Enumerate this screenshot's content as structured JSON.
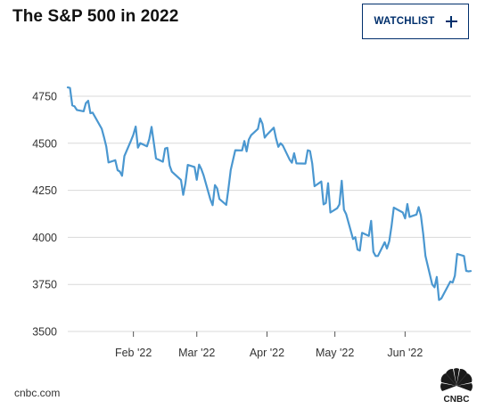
{
  "header": {
    "title": "The S&P 500 in 2022",
    "watchlist_label": "WATCHLIST"
  },
  "footer": {
    "source": "cnbc.com",
    "logo_text": "CNBC"
  },
  "colors": {
    "line": "#4a97d0",
    "grid": "#d9d9d9",
    "button_border": "#002f6c"
  },
  "chart_data": {
    "type": "line",
    "title": "The S&P 500 in 2022",
    "xlabel": "",
    "ylabel": "",
    "ylim": [
      3500,
      4750
    ],
    "yticks": [
      3500,
      3750,
      4000,
      4250,
      4500,
      4750
    ],
    "xlim": [
      "2022-01-03",
      "2022-06-30"
    ],
    "xticks": [
      {
        "date": "2022-02-01",
        "label": "Feb '22"
      },
      {
        "date": "2022-03-01",
        "label": "Mar '22"
      },
      {
        "date": "2022-04-01",
        "label": "Apr '22"
      },
      {
        "date": "2022-05-01",
        "label": "May '22"
      },
      {
        "date": "2022-06-01",
        "label": "Jun '22"
      }
    ],
    "grid": true,
    "series": [
      {
        "x": [
          "2022-01-03",
          "2022-01-04",
          "2022-01-05",
          "2022-01-06",
          "2022-01-07",
          "2022-01-10",
          "2022-01-11",
          "2022-01-12",
          "2022-01-13",
          "2022-01-14",
          "2022-01-18",
          "2022-01-19",
          "2022-01-20",
          "2022-01-21",
          "2022-01-24",
          "2022-01-25",
          "2022-01-26",
          "2022-01-27",
          "2022-01-28",
          "2022-01-31",
          "2022-02-01",
          "2022-02-02",
          "2022-02-03",
          "2022-02-04",
          "2022-02-07",
          "2022-02-08",
          "2022-02-09",
          "2022-02-10",
          "2022-02-11",
          "2022-02-14",
          "2022-02-15",
          "2022-02-16",
          "2022-02-17",
          "2022-02-18",
          "2022-02-22",
          "2022-02-23",
          "2022-02-24",
          "2022-02-25",
          "2022-02-28",
          "2022-03-01",
          "2022-03-02",
          "2022-03-03",
          "2022-03-04",
          "2022-03-07",
          "2022-03-08",
          "2022-03-09",
          "2022-03-10",
          "2022-03-11",
          "2022-03-14",
          "2022-03-15",
          "2022-03-16",
          "2022-03-17",
          "2022-03-18",
          "2022-03-21",
          "2022-03-22",
          "2022-03-23",
          "2022-03-24",
          "2022-03-25",
          "2022-03-28",
          "2022-03-29",
          "2022-03-30",
          "2022-03-31",
          "2022-04-01",
          "2022-04-04",
          "2022-04-05",
          "2022-04-06",
          "2022-04-07",
          "2022-04-08",
          "2022-04-11",
          "2022-04-12",
          "2022-04-13",
          "2022-04-14",
          "2022-04-18",
          "2022-04-19",
          "2022-04-20",
          "2022-04-21",
          "2022-04-22",
          "2022-04-25",
          "2022-04-26",
          "2022-04-27",
          "2022-04-28",
          "2022-04-29",
          "2022-05-02",
          "2022-05-03",
          "2022-05-04",
          "2022-05-05",
          "2022-05-06",
          "2022-05-09",
          "2022-05-10",
          "2022-05-11",
          "2022-05-12",
          "2022-05-13",
          "2022-05-16",
          "2022-05-17",
          "2022-05-18",
          "2022-05-19",
          "2022-05-20",
          "2022-05-23",
          "2022-05-24",
          "2022-05-25",
          "2022-05-26",
          "2022-05-27",
          "2022-05-31",
          "2022-06-01",
          "2022-06-02",
          "2022-06-03",
          "2022-06-06",
          "2022-06-07",
          "2022-06-08",
          "2022-06-09",
          "2022-06-10",
          "2022-06-13",
          "2022-06-14",
          "2022-06-15",
          "2022-06-16",
          "2022-06-17",
          "2022-06-21",
          "2022-06-22",
          "2022-06-23",
          "2022-06-24",
          "2022-06-27",
          "2022-06-28",
          "2022-06-29",
          "2022-06-30"
        ],
        "values": [
          4797,
          4794,
          4701,
          4696,
          4677,
          4670,
          4713,
          4726,
          4660,
          4663,
          4577,
          4533,
          4483,
          4398,
          4410,
          4357,
          4350,
          4327,
          4432,
          4516,
          4546,
          4589,
          4477,
          4501,
          4484,
          4522,
          4587,
          4504,
          4419,
          4402,
          4472,
          4476,
          4381,
          4349,
          4305,
          4226,
          4289,
          4385,
          4374,
          4306,
          4387,
          4363,
          4329,
          4201,
          4171,
          4278,
          4260,
          4204,
          4173,
          4262,
          4358,
          4412,
          4463,
          4462,
          4512,
          4457,
          4520,
          4543,
          4576,
          4632,
          4603,
          4530,
          4546,
          4583,
          4526,
          4481,
          4500,
          4488,
          4413,
          4397,
          4447,
          4393,
          4392,
          4463,
          4459,
          4393,
          4272,
          4297,
          4175,
          4183,
          4288,
          4132,
          4155,
          4175,
          4301,
          4147,
          4123,
          3991,
          4001,
          3935,
          3930,
          4024,
          4008,
          4088,
          3923,
          3901,
          3901,
          3974,
          3941,
          3979,
          4058,
          4158,
          4132,
          4101,
          4177,
          4109,
          4121,
          4161,
          4116,
          4018,
          3901,
          3750,
          3735,
          3790,
          3667,
          3675,
          3765,
          3760,
          3796,
          3912,
          3901,
          3822,
          3819,
          3821
        ]
      }
    ]
  }
}
